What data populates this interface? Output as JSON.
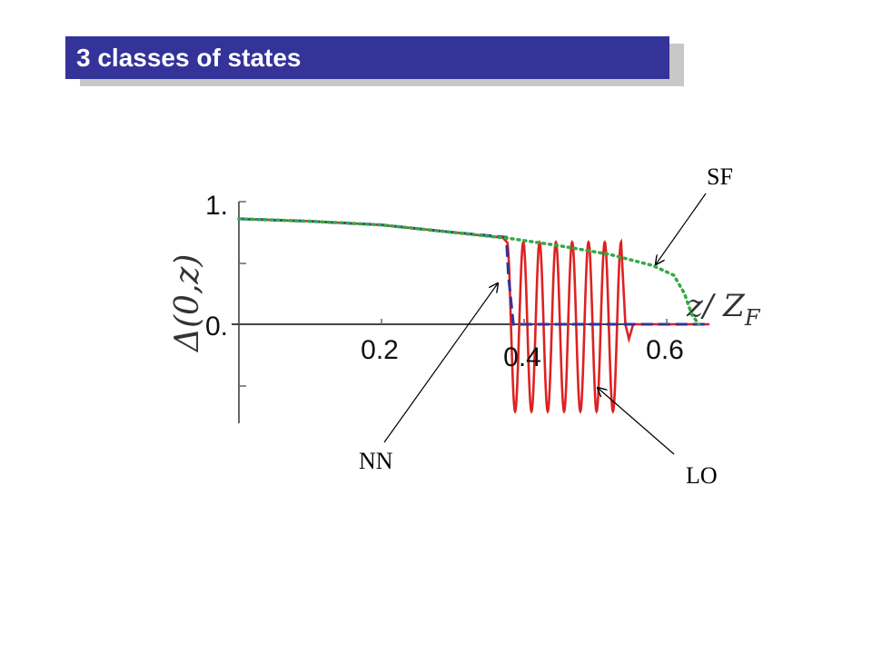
{
  "slide": {
    "title": "3 classes of states"
  },
  "chart_data": {
    "type": "line",
    "xlabel": "z/ Z_F",
    "xlabel_main": "z/ Z",
    "xlabel_sub": "F",
    "ylabel": "Δ(0,z)",
    "xlim": [
      0.0,
      0.66
    ],
    "ylim": [
      -0.78,
      1.0
    ],
    "x_ticks": [
      0.2,
      0.4,
      0.6
    ],
    "x_tick_labels": [
      "0.2",
      "0.4",
      "0.6"
    ],
    "y_tick_labels": [
      "1.",
      "0."
    ],
    "y_tick_values": [
      1.0,
      0.0
    ],
    "series": [
      {
        "name": "SF",
        "color": "#33aa44",
        "style": "dotted",
        "x": [
          0.0,
          0.1,
          0.2,
          0.3,
          0.38,
          0.45,
          0.52,
          0.58,
          0.61,
          0.625,
          0.635,
          0.645
        ],
        "y": [
          0.86,
          0.84,
          0.81,
          0.75,
          0.7,
          0.64,
          0.57,
          0.48,
          0.4,
          0.25,
          0.08,
          0.0
        ]
      },
      {
        "name": "NN",
        "color": "#333399",
        "style": "dashed",
        "x": [
          0.0,
          0.1,
          0.2,
          0.3,
          0.375,
          0.378,
          0.385,
          0.66
        ],
        "y": [
          0.86,
          0.84,
          0.81,
          0.75,
          0.71,
          0.4,
          0.0,
          0.0
        ]
      },
      {
        "name": "LO",
        "color": "#dd2222",
        "style": "solid",
        "x_start": 0.0,
        "oscillation_start": 0.376,
        "oscillation_end": 0.536,
        "oscillation_count": 7,
        "oscillation_top": 0.67,
        "oscillation_bottom": -0.71,
        "tail_dip": -0.12,
        "x_end": 0.66
      }
    ],
    "annotations": [
      {
        "label": "SF",
        "points_to": "SF"
      },
      {
        "label": "NN",
        "points_to": "NN"
      },
      {
        "label": "LO",
        "points_to": "LO"
      }
    ]
  }
}
